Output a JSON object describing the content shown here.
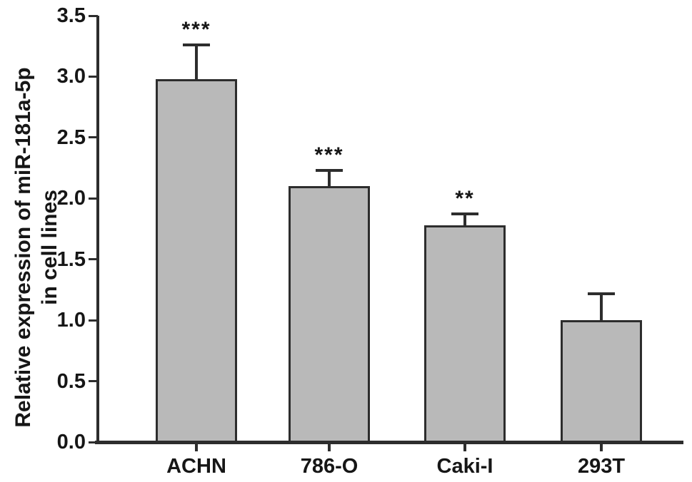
{
  "figure": {
    "background_color": "#ffffff"
  },
  "chart_data": {
    "type": "bar",
    "title": "",
    "xlabel": "",
    "ylabel_line1": "Relative expression of miR-181a-5p",
    "ylabel_line2": "in cell lines",
    "categories": [
      "ACHN",
      "786-O",
      "Caki-I",
      "293T"
    ],
    "values": [
      2.98,
      2.1,
      1.78,
      1.0
    ],
    "error_bars": [
      0.28,
      0.13,
      0.09,
      0.22
    ],
    "significance": [
      "***",
      "***",
      "**",
      ""
    ],
    "ylim": [
      0,
      3.5
    ],
    "yticks": [
      0.0,
      0.5,
      1.0,
      1.5,
      2.0,
      2.5,
      3.0,
      3.5
    ],
    "ytick_labels": [
      "0.0",
      "0.5",
      "1.0",
      "1.5",
      "2.0",
      "2.5",
      "3.0",
      "3.5"
    ],
    "grid": false,
    "legend": null,
    "bar_fill_color": "#b9b9b9",
    "bar_border_color": "#2d2d2d",
    "error_bar_color": "#2d2d2d",
    "axis_color": "#2d2d2d",
    "text_color": "#161616"
  }
}
